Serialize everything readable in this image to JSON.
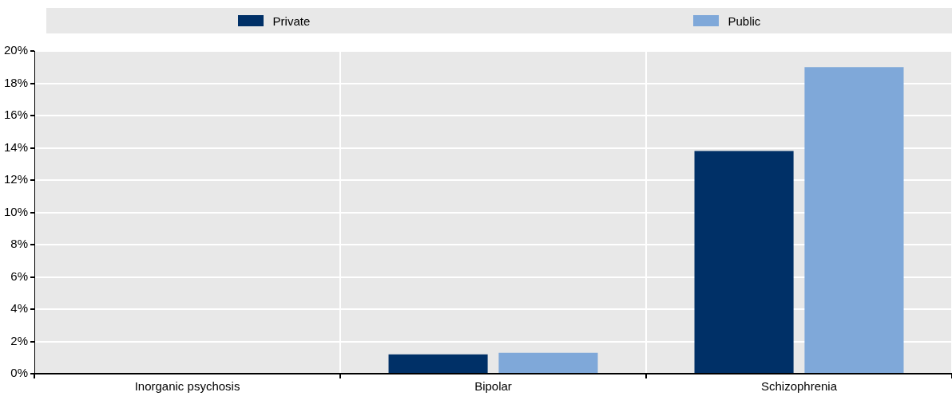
{
  "chart_data": {
    "type": "bar",
    "categories": [
      "Inorganic psychosis",
      "Bipolar",
      "Schizophrenia"
    ],
    "series": [
      {
        "name": "Private",
        "color": "#003067",
        "values": [
          0,
          1.2,
          13.8
        ]
      },
      {
        "name": "Public",
        "color": "#7fa8d9",
        "values": [
          0,
          1.3,
          19.0
        ]
      }
    ],
    "ylim": [
      0,
      20
    ],
    "yticks": [
      {
        "value": 0,
        "label": "0%"
      },
      {
        "value": 2,
        "label": "2%"
      },
      {
        "value": 4,
        "label": "4%"
      },
      {
        "value": 6,
        "label": "6%"
      },
      {
        "value": 8,
        "label": "8%"
      },
      {
        "value": 10,
        "label": "10%"
      },
      {
        "value": 12,
        "label": "12%"
      },
      {
        "value": 14,
        "label": "14%"
      },
      {
        "value": 16,
        "label": "16%"
      },
      {
        "value": 18,
        "label": "18%"
      },
      {
        "value": 20,
        "label": "20%"
      }
    ],
    "grid": true,
    "legend": "top"
  }
}
